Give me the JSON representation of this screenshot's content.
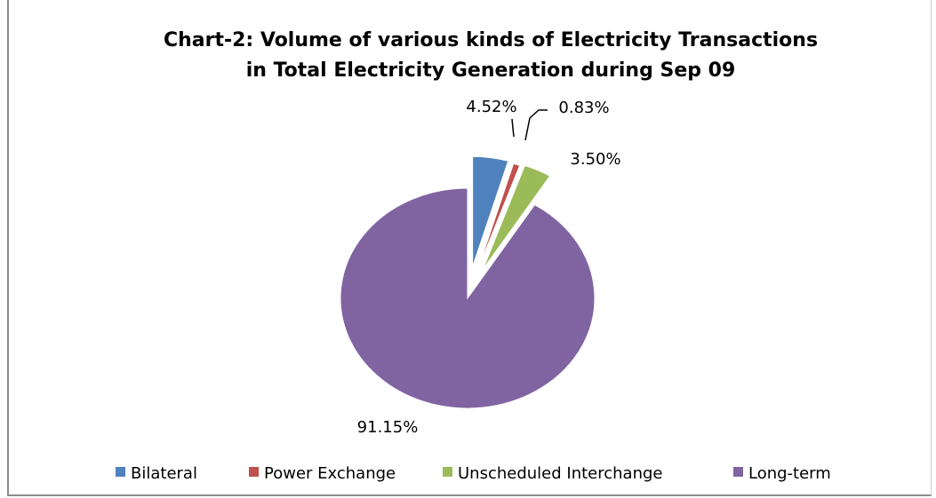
{
  "chart_data": {
    "type": "pie",
    "title_lines": [
      "Chart-2: Volume of various kinds of Electricity Transactions",
      "in Total Electricity Generation during Sep 09"
    ],
    "slices": [
      {
        "name": "Bilateral",
        "value": 4.52,
        "label": "4.52%",
        "color": "#4F81BD"
      },
      {
        "name": "Power Exchange",
        "value": 0.83,
        "label": "0.83%",
        "color": "#C0504D"
      },
      {
        "name": "Unscheduled Interchange",
        "value": 3.5,
        "label": "3.50%",
        "color": "#9BBB59"
      },
      {
        "name": "Long-term",
        "value": 91.15,
        "label": "91.15%",
        "color": "#8064A2"
      }
    ],
    "legend_placement": "bottom",
    "exploded": true
  }
}
